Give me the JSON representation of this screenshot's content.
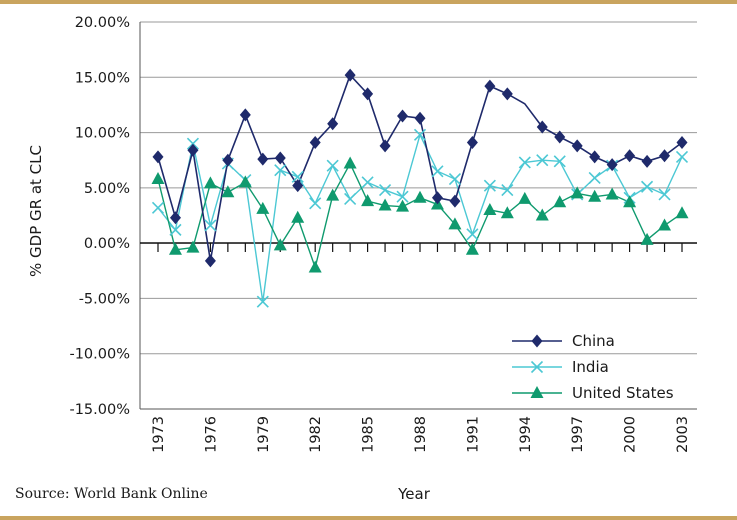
{
  "chart_data": {
    "type": "line",
    "title": "",
    "xlabel": "Year",
    "ylabel": "% GDP GR at CLC",
    "source": "Source: World Bank Online",
    "xlim": [
      1973,
      2003
    ],
    "ylim": [
      -15,
      20
    ],
    "yticks": [
      20,
      15,
      10,
      5,
      0,
      -5,
      -10,
      -15
    ],
    "ytick_labels": [
      "20.00%",
      "15.00%",
      "10.00%",
      "5.00%",
      "0.00%",
      "-5.00%",
      "-10.00%",
      "-15.00%"
    ],
    "xtick_labels": [
      "1973",
      "1976",
      "1979",
      "1982",
      "1985",
      "1988",
      "1991",
      "1994",
      "1997",
      "2000",
      "2003"
    ],
    "legend_position": "lower-right",
    "series": [
      {
        "name": "China",
        "color": "#1f2a6b",
        "marker": "diamond",
        "x": [
          1973,
          1974,
          1975,
          1976,
          1977,
          1978,
          1979,
          1980,
          1981,
          1982,
          1983,
          1984,
          1985,
          1986,
          1987,
          1988,
          1989,
          1990,
          1991,
          1992,
          1993,
          1994,
          1995,
          1996,
          1997,
          1998,
          1999,
          2000,
          2001,
          2002,
          2003
        ],
        "values": [
          7.8,
          2.3,
          8.4,
          -1.6,
          7.5,
          11.6,
          7.6,
          7.7,
          5.2,
          9.1,
          10.8,
          15.2,
          13.5,
          8.8,
          11.5,
          11.3,
          4.1,
          3.8,
          9.1,
          14.2,
          13.5,
          12.6,
          10.5,
          9.6,
          8.8,
          7.8,
          7.1,
          7.9,
          7.4,
          7.9,
          9.1
        ],
        "markers": [
          1,
          1,
          1,
          1,
          1,
          1,
          1,
          1,
          1,
          1,
          1,
          1,
          1,
          1,
          1,
          1,
          1,
          1,
          1,
          1,
          1,
          0,
          1,
          1,
          1,
          1,
          1,
          1,
          1,
          1,
          1
        ]
      },
      {
        "name": "India",
        "color": "#4cc8d4",
        "marker": "x",
        "x": [
          1973,
          1974,
          1975,
          1976,
          1977,
          1978,
          1979,
          1980,
          1981,
          1982,
          1983,
          1984,
          1985,
          1986,
          1987,
          1988,
          1989,
          1990,
          1991,
          1992,
          1993,
          1994,
          1995,
          1996,
          1997,
          1998,
          1999,
          2000,
          2001,
          2002,
          2003
        ],
        "values": [
          3.2,
          1.2,
          9.0,
          1.6,
          7.2,
          5.7,
          -5.3,
          6.6,
          6.0,
          3.6,
          7.0,
          4.0,
          5.5,
          4.8,
          4.2,
          9.8,
          6.5,
          5.8,
          0.8,
          5.2,
          4.8,
          7.3,
          7.5,
          7.4,
          4.4,
          5.9,
          7.0,
          4.1,
          5.1,
          4.4,
          7.8
        ],
        "markers": [
          1,
          1,
          1,
          1,
          1,
          1,
          1,
          1,
          1,
          1,
          1,
          1,
          1,
          1,
          1,
          1,
          1,
          1,
          1,
          1,
          1,
          1,
          1,
          1,
          1,
          1,
          1,
          1,
          1,
          1,
          1
        ]
      },
      {
        "name": "United States",
        "color": "#0f9a6e",
        "marker": "triangle",
        "x": [
          1973,
          1974,
          1975,
          1976,
          1977,
          1978,
          1979,
          1980,
          1981,
          1982,
          1983,
          1984,
          1985,
          1986,
          1987,
          1988,
          1989,
          1990,
          1991,
          1992,
          1993,
          1994,
          1995,
          1996,
          1997,
          1998,
          1999,
          2000,
          2001,
          2002,
          2003
        ],
        "values": [
          5.8,
          -0.6,
          -0.4,
          5.4,
          4.6,
          5.5,
          3.1,
          -0.2,
          2.3,
          -2.2,
          4.3,
          7.2,
          3.8,
          3.4,
          3.3,
          4.1,
          3.5,
          1.7,
          -0.6,
          3.0,
          2.7,
          4.0,
          2.5,
          3.7,
          4.5,
          4.2,
          4.4,
          3.7,
          0.3,
          1.6,
          2.7
        ],
        "markers": [
          1,
          1,
          1,
          1,
          1,
          1,
          1,
          1,
          1,
          1,
          1,
          1,
          1,
          1,
          1,
          1,
          1,
          1,
          1,
          1,
          1,
          1,
          1,
          1,
          1,
          1,
          1,
          1,
          1,
          1,
          1
        ]
      }
    ]
  }
}
